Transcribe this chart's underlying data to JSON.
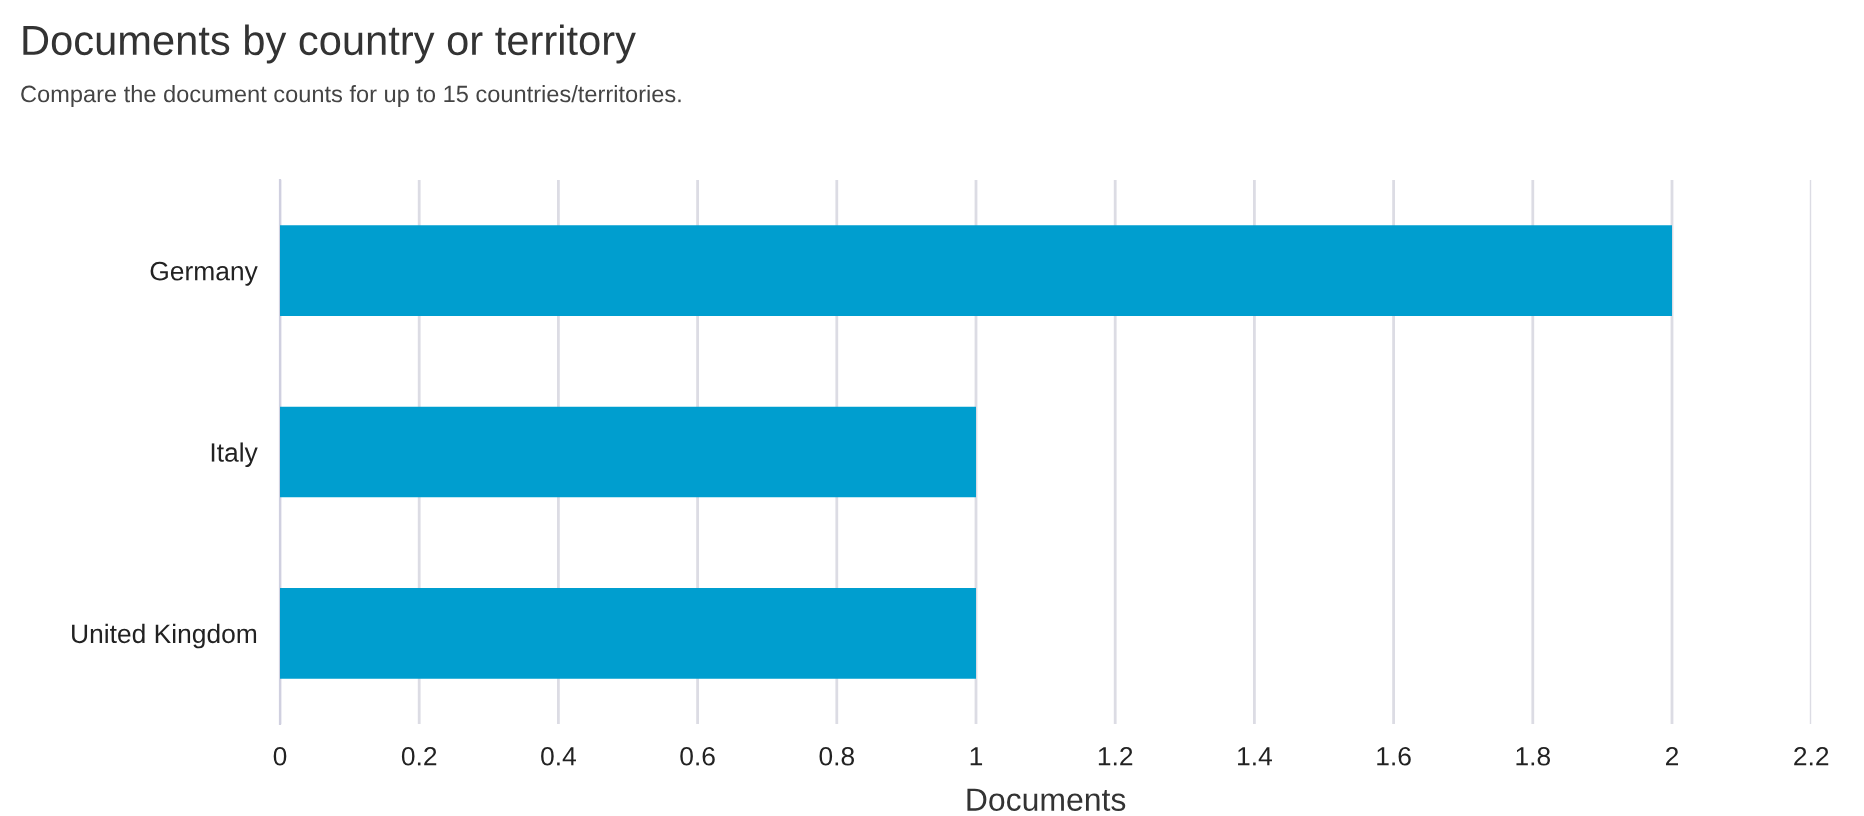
{
  "chart_data": {
    "type": "bar",
    "orientation": "horizontal",
    "title": "Documents by country or territory",
    "subtitle": "Compare the document counts for up to 15 countries/territories.",
    "xlabel": "Documents",
    "categories": [
      "Germany",
      "Italy",
      "United Kingdom"
    ],
    "values": [
      2,
      1,
      1
    ],
    "color": "#009ecf",
    "xlim": [
      0,
      2.2
    ],
    "xticks": [
      0,
      0.2,
      0.4,
      0.6,
      0.8,
      1,
      1.2,
      1.4,
      1.6,
      1.8,
      2,
      2.2
    ],
    "grid": "x",
    "legend": false
  }
}
